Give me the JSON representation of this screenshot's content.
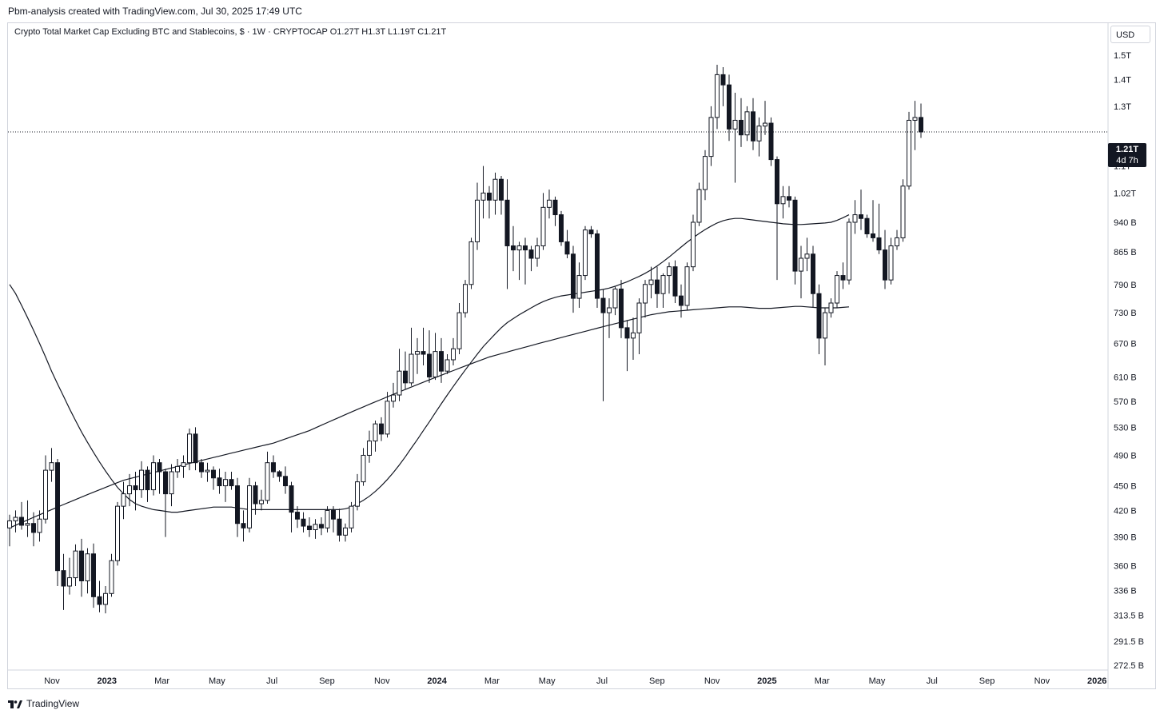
{
  "credit": "Pbm-analysis created with TradingView.com, Jul 30, 2025 17:49 UTC",
  "legend": "Crypto Total Market Cap Excluding BTC and Stablecoins, $ · 1W · CRYPTOCAP  O1.27T  H1.3T  L1.19T  C1.21T",
  "currency_button": "USD",
  "last_price": {
    "value": "1.21T",
    "countdown": "4d 7h"
  },
  "footer_brand": "TradingView",
  "colors": {
    "up_body": "#ffffff",
    "down_body": "#131722",
    "wick": "#131722",
    "ma": "#131722",
    "grid_border": "#d1d4dc"
  },
  "chart_data": {
    "type": "candlestick",
    "interval": "1W",
    "symbol": "CRYPTOCAP",
    "title": "Crypto Total Market Cap Excluding BTC and Stablecoins",
    "currency": "USD",
    "y_scale": "log",
    "ylim": [
      272.5,
      1600
    ],
    "y_unit": "B",
    "y_ticks": [
      {
        "value": 1500,
        "label": "1.5T"
      },
      {
        "value": 1400,
        "label": "1.4T"
      },
      {
        "value": 1300,
        "label": "1.3T"
      },
      {
        "value": 1100,
        "label": "1.1T"
      },
      {
        "value": 1020,
        "label": "1.02T"
      },
      {
        "value": 940,
        "label": "940 B"
      },
      {
        "value": 865,
        "label": "865 B"
      },
      {
        "value": 790,
        "label": "790 B"
      },
      {
        "value": 730,
        "label": "730 B"
      },
      {
        "value": 670,
        "label": "670 B"
      },
      {
        "value": 610,
        "label": "610 B"
      },
      {
        "value": 570,
        "label": "570 B"
      },
      {
        "value": 530,
        "label": "530 B"
      },
      {
        "value": 490,
        "label": "490 B"
      },
      {
        "value": 450,
        "label": "450 B"
      },
      {
        "value": 420,
        "label": "420 B"
      },
      {
        "value": 390,
        "label": "390 B"
      },
      {
        "value": 360,
        "label": "360 B"
      },
      {
        "value": 336,
        "label": "336 B"
      },
      {
        "value": 313.5,
        "label": "313.5 B"
      },
      {
        "value": 291.5,
        "label": "291.5 B"
      },
      {
        "value": 272.5,
        "label": "272.5 B"
      }
    ],
    "x_ticks": [
      {
        "label": "Nov",
        "bold": false
      },
      {
        "label": "2023",
        "bold": true
      },
      {
        "label": "Mar",
        "bold": false
      },
      {
        "label": "May",
        "bold": false
      },
      {
        "label": "Jul",
        "bold": false
      },
      {
        "label": "Sep",
        "bold": false
      },
      {
        "label": "Nov",
        "bold": false
      },
      {
        "label": "2024",
        "bold": true
      },
      {
        "label": "Mar",
        "bold": false
      },
      {
        "label": "May",
        "bold": false
      },
      {
        "label": "Jul",
        "bold": false
      },
      {
        "label": "Sep",
        "bold": false
      },
      {
        "label": "Nov",
        "bold": false
      },
      {
        "label": "2025",
        "bold": true
      },
      {
        "label": "Mar",
        "bold": false
      },
      {
        "label": "May",
        "bold": false
      },
      {
        "label": "Jul",
        "bold": false
      },
      {
        "label": "Sep",
        "bold": false
      },
      {
        "label": "Nov",
        "bold": false
      },
      {
        "label": "2026",
        "bold": true
      }
    ],
    "candle_columns": [
      "open",
      "high",
      "low",
      "close"
    ],
    "candles": [
      [
        400,
        415,
        380,
        408
      ],
      [
        408,
        420,
        395,
        412
      ],
      [
        412,
        430,
        398,
        403
      ],
      [
        403,
        432,
        390,
        405
      ],
      [
        405,
        418,
        380,
        395
      ],
      [
        395,
        420,
        385,
        410
      ],
      [
        410,
        490,
        405,
        470
      ],
      [
        470,
        500,
        455,
        480
      ],
      [
        480,
        485,
        340,
        355
      ],
      [
        355,
        372,
        318,
        340
      ],
      [
        340,
        368,
        332,
        348
      ],
      [
        348,
        382,
        340,
        375
      ],
      [
        375,
        388,
        330,
        345
      ],
      [
        345,
        378,
        333,
        372
      ],
      [
        372,
        383,
        320,
        330
      ],
      [
        330,
        345,
        316,
        323
      ],
      [
        323,
        340,
        315,
        333
      ],
      [
        333,
        372,
        330,
        365
      ],
      [
        365,
        430,
        360,
        425
      ],
      [
        425,
        455,
        410,
        440
      ],
      [
        440,
        465,
        425,
        450
      ],
      [
        450,
        468,
        420,
        445
      ],
      [
        445,
        482,
        435,
        470
      ],
      [
        470,
        475,
        430,
        445
      ],
      [
        445,
        490,
        438,
        480
      ],
      [
        480,
        485,
        440,
        468
      ],
      [
        468,
        472,
        390,
        440
      ],
      [
        440,
        478,
        425,
        468
      ],
      [
        468,
        485,
        460,
        475
      ],
      [
        475,
        490,
        460,
        480
      ],
      [
        480,
        528,
        470,
        520
      ],
      [
        520,
        530,
        470,
        480
      ],
      [
        480,
        485,
        460,
        468
      ],
      [
        468,
        480,
        455,
        470
      ],
      [
        470,
        475,
        445,
        460
      ],
      [
        460,
        472,
        440,
        450
      ],
      [
        450,
        468,
        430,
        458
      ],
      [
        458,
        468,
        445,
        450
      ],
      [
        450,
        460,
        390,
        405
      ],
      [
        405,
        420,
        385,
        400
      ],
      [
        400,
        460,
        395,
        450
      ],
      [
        450,
        455,
        415,
        428
      ],
      [
        428,
        445,
        420,
        432
      ],
      [
        432,
        495,
        428,
        480
      ],
      [
        480,
        490,
        460,
        468
      ],
      [
        468,
        470,
        455,
        462
      ],
      [
        462,
        475,
        440,
        450
      ],
      [
        450,
        455,
        395,
        418
      ],
      [
        418,
        425,
        400,
        410
      ],
      [
        410,
        418,
        395,
        402
      ],
      [
        402,
        412,
        390,
        398
      ],
      [
        398,
        410,
        388,
        404
      ],
      [
        404,
        412,
        392,
        400
      ],
      [
        400,
        425,
        395,
        420
      ],
      [
        420,
        425,
        395,
        410
      ],
      [
        410,
        422,
        385,
        392
      ],
      [
        392,
        405,
        385,
        400
      ],
      [
        400,
        430,
        395,
        425
      ],
      [
        425,
        465,
        420,
        455
      ],
      [
        455,
        500,
        450,
        490
      ],
      [
        490,
        525,
        480,
        510
      ],
      [
        510,
        540,
        495,
        535
      ],
      [
        535,
        545,
        510,
        520
      ],
      [
        520,
        585,
        515,
        570
      ],
      [
        570,
        600,
        560,
        580
      ],
      [
        580,
        660,
        570,
        620
      ],
      [
        620,
        655,
        590,
        600
      ],
      [
        600,
        700,
        595,
        650
      ],
      [
        650,
        680,
        615,
        655
      ],
      [
        655,
        700,
        630,
        650
      ],
      [
        650,
        695,
        600,
        610
      ],
      [
        610,
        690,
        605,
        655
      ],
      [
        655,
        680,
        600,
        620
      ],
      [
        620,
        650,
        615,
        640
      ],
      [
        640,
        680,
        630,
        660
      ],
      [
        660,
        750,
        650,
        730
      ],
      [
        730,
        800,
        720,
        790
      ],
      [
        790,
        900,
        780,
        890
      ],
      [
        890,
        1050,
        870,
        1000
      ],
      [
        1000,
        1100,
        950,
        1020
      ],
      [
        1020,
        1040,
        950,
        1000
      ],
      [
        1000,
        1080,
        960,
        1060
      ],
      [
        1060,
        1070,
        960,
        1000
      ],
      [
        1000,
        1060,
        780,
        880
      ],
      [
        880,
        930,
        820,
        870
      ],
      [
        870,
        890,
        800,
        880
      ],
      [
        880,
        900,
        790,
        870
      ],
      [
        870,
        880,
        820,
        850
      ],
      [
        850,
        900,
        830,
        880
      ],
      [
        880,
        1020,
        870,
        980
      ],
      [
        980,
        1030,
        950,
        1000
      ],
      [
        1000,
        1010,
        930,
        960
      ],
      [
        960,
        970,
        880,
        890
      ],
      [
        890,
        920,
        850,
        860
      ],
      [
        860,
        880,
        730,
        760
      ],
      [
        760,
        840,
        740,
        810
      ],
      [
        810,
        930,
        800,
        920
      ],
      [
        920,
        930,
        900,
        910
      ],
      [
        910,
        920,
        740,
        760
      ],
      [
        760,
        780,
        570,
        730
      ],
      [
        730,
        760,
        680,
        740
      ],
      [
        740,
        785,
        725,
        780
      ],
      [
        780,
        800,
        680,
        700
      ],
      [
        700,
        715,
        620,
        680
      ],
      [
        680,
        720,
        640,
        690
      ],
      [
        690,
        760,
        650,
        750
      ],
      [
        750,
        800,
        720,
        790
      ],
      [
        790,
        830,
        760,
        800
      ],
      [
        800,
        830,
        740,
        770
      ],
      [
        770,
        815,
        740,
        810
      ],
      [
        810,
        840,
        770,
        830
      ],
      [
        830,
        845,
        750,
        765
      ],
      [
        765,
        790,
        720,
        745
      ],
      [
        745,
        840,
        735,
        830
      ],
      [
        830,
        960,
        820,
        940
      ],
      [
        940,
        1050,
        930,
        1030
      ],
      [
        1030,
        1150,
        1000,
        1130
      ],
      [
        1130,
        1300,
        1100,
        1260
      ],
      [
        1260,
        1460,
        1220,
        1420
      ],
      [
        1420,
        1450,
        1300,
        1380
      ],
      [
        1380,
        1420,
        1180,
        1220
      ],
      [
        1220,
        1350,
        1050,
        1250
      ],
      [
        1250,
        1330,
        1160,
        1200
      ],
      [
        1200,
        1300,
        1180,
        1280
      ],
      [
        1280,
        1330,
        1150,
        1180
      ],
      [
        1180,
        1260,
        1130,
        1230
      ],
      [
        1230,
        1320,
        1200,
        1240
      ],
      [
        1240,
        1260,
        1100,
        1120
      ],
      [
        1120,
        1130,
        800,
        990
      ],
      [
        990,
        1040,
        950,
        1010
      ],
      [
        1010,
        1040,
        980,
        1000
      ],
      [
        1000,
        1010,
        790,
        820
      ],
      [
        820,
        880,
        760,
        850
      ],
      [
        850,
        900,
        820,
        860
      ],
      [
        860,
        880,
        740,
        770
      ],
      [
        770,
        790,
        650,
        680
      ],
      [
        680,
        740,
        630,
        730
      ],
      [
        730,
        760,
        720,
        750
      ],
      [
        750,
        820,
        740,
        810
      ],
      [
        810,
        840,
        780,
        800
      ],
      [
        800,
        950,
        790,
        940
      ],
      [
        940,
        1000,
        910,
        960
      ],
      [
        960,
        1030,
        920,
        950
      ],
      [
        950,
        960,
        900,
        910
      ],
      [
        910,
        1000,
        890,
        900
      ],
      [
        900,
        990,
        860,
        870
      ],
      [
        870,
        920,
        780,
        800
      ],
      [
        800,
        900,
        790,
        880
      ],
      [
        880,
        920,
        870,
        900
      ],
      [
        900,
        1060,
        890,
        1040
      ],
      [
        1040,
        1280,
        1030,
        1250
      ],
      [
        1250,
        1320,
        1150,
        1260
      ],
      [
        1260,
        1310,
        1190,
        1210
      ]
    ],
    "moving_averages": [
      {
        "values": [
          790,
          770,
          745,
          720,
          695,
          670,
          645,
          620,
          598,
          578,
          558,
          540,
          523,
          508,
          494,
          481,
          469,
          458,
          448,
          440,
          433,
          428,
          425,
          423,
          421,
          420,
          419,
          418,
          418,
          419,
          420,
          421,
          422,
          423,
          424,
          424,
          424,
          424,
          423,
          422,
          421,
          421,
          421,
          421,
          421,
          421,
          421,
          421,
          421,
          421,
          421,
          421,
          421,
          421,
          421,
          421,
          422,
          424,
          428,
          432,
          437,
          443,
          450,
          458,
          467,
          477,
          488,
          500,
          512,
          525,
          538,
          552,
          566,
          580,
          594,
          608,
          622,
          636,
          650,
          664,
          676,
          688,
          700,
          710,
          718,
          726,
          733,
          740,
          747,
          753,
          758,
          762,
          765,
          767,
          769,
          771,
          773,
          775,
          777,
          779,
          782,
          786,
          791,
          796,
          802,
          808,
          815,
          823,
          832,
          842,
          853,
          865,
          877,
          889,
          900,
          911,
          921,
          930,
          938,
          944,
          948,
          950,
          950,
          948,
          946,
          944,
          942,
          940,
          938,
          936,
          935,
          934,
          934,
          935,
          936,
          937,
          938,
          940,
          945,
          952,
          960
        ]
      },
      {
        "values": [
          400,
          403,
          406,
          409,
          412,
          415,
          418,
          421,
          424,
          427,
          430,
          433,
          436,
          439,
          442,
          445,
          448,
          451,
          454,
          457,
          459,
          461,
          463,
          465,
          467,
          469,
          471,
          473,
          475,
          477,
          479,
          481,
          483,
          485,
          487,
          489,
          491,
          493,
          495,
          497,
          499,
          501,
          503,
          505,
          507,
          510,
          513,
          516,
          519,
          522,
          525,
          529,
          533,
          537,
          541,
          545,
          549,
          553,
          557,
          561,
          565,
          569,
          573,
          577,
          581,
          585,
          589,
          593,
          597,
          601,
          605,
          609,
          613,
          617,
          621,
          625,
          629,
          633,
          637,
          641,
          645,
          648,
          651,
          654,
          657,
          660,
          663,
          666,
          669,
          672,
          675,
          678,
          681,
          684,
          687,
          690,
          693,
          696,
          699,
          702,
          705,
          708,
          711,
          714,
          717,
          720,
          723,
          726,
          728,
          730,
          732,
          733,
          734,
          735,
          736,
          737,
          738,
          739,
          740,
          741,
          742,
          742,
          742,
          741,
          740,
          739,
          739,
          739,
          740,
          741,
          742,
          743,
          743,
          742,
          741,
          740,
          740,
          740,
          740,
          741,
          742
        ]
      }
    ],
    "last_value": 1210
  }
}
